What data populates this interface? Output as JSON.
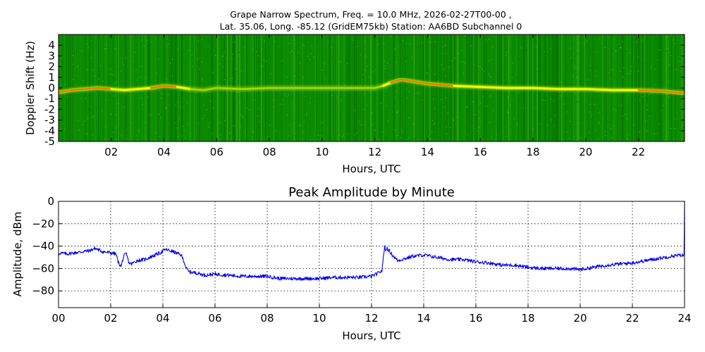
{
  "figure": {
    "title_line1": "Grape Narrow Spectrum, Freq. = 10.0 MHz, 2026-02-27T00-00 ,",
    "title_line2": "Lat.  35.06, Long. -85.12 (GridEM75kb) Station: AA6BD Subchannel 0"
  },
  "colors": {
    "spectrum_background": "#0a8a00",
    "spectrum_dark": "#066e00",
    "spectrum_trace_bright": "#ffff00",
    "spectrum_trace_hot": "#ff2a00",
    "amplitude_line": "#0000ee",
    "grid": "#000000"
  },
  "chart_data": [
    {
      "type": "heatmap",
      "name": "spectrogram",
      "title": "",
      "xlabel": "Hours, UTC",
      "ylabel": "Doppler Shift (Hz)",
      "xlim": [
        0,
        23.75
      ],
      "ylim": [
        -5,
        5
      ],
      "x_ticks": [
        2,
        4,
        6,
        8,
        10,
        12,
        14,
        16,
        18,
        20,
        22
      ],
      "x_tick_labels": [
        "02",
        "04",
        "06",
        "08",
        "10",
        "12",
        "14",
        "16",
        "18",
        "20",
        "22"
      ],
      "y_ticks": [
        -5,
        -4,
        -3,
        -2,
        -1,
        0,
        1,
        2,
        3,
        4
      ],
      "y_tick_labels": [
        "-5",
        "-4",
        "-3",
        "-2",
        "-1",
        "0",
        "1",
        "2",
        "3",
        "4"
      ],
      "colormap": "green-yellow-red",
      "doppler_trace": {
        "x": [
          0,
          0.5,
          1,
          1.5,
          2,
          2.5,
          3,
          3.5,
          4,
          4.5,
          5,
          5.5,
          6,
          7,
          8,
          9,
          10,
          11,
          12,
          12.3,
          12.6,
          13,
          13.5,
          14,
          15,
          16,
          17,
          18,
          19,
          20,
          21,
          22,
          23,
          23.75
        ],
        "y": [
          -0.4,
          -0.2,
          -0.1,
          0.0,
          -0.1,
          -0.2,
          -0.1,
          0.0,
          0.2,
          0.1,
          -0.1,
          -0.2,
          0.0,
          -0.1,
          0.0,
          0.0,
          0.0,
          0.0,
          0.0,
          0.2,
          0.5,
          0.8,
          0.6,
          0.4,
          0.2,
          0.1,
          0.0,
          0.0,
          -0.1,
          -0.1,
          -0.2,
          -0.2,
          -0.3,
          -0.5
        ],
        "strength": [
          0.9,
          1,
          1,
          0.9,
          0.9,
          0.7,
          0.7,
          0.8,
          1,
          0.9,
          0.5,
          0.3,
          0.3,
          0.2,
          0.15,
          0.15,
          0.15,
          0.15,
          0.2,
          0.5,
          0.8,
          0.9,
          0.9,
          0.9,
          0.8,
          0.8,
          0.75,
          0.75,
          0.8,
          0.8,
          0.85,
          0.85,
          0.9,
          1
        ]
      }
    },
    {
      "type": "line",
      "name": "peak-amplitude",
      "title": "Peak Amplitude by Minute",
      "xlabel": "Hours, UTC",
      "ylabel": "Amplitude, dBm",
      "xlim": [
        0,
        24
      ],
      "ylim": [
        -95,
        0
      ],
      "grid": true,
      "x_ticks": [
        0,
        2,
        4,
        6,
        8,
        10,
        12,
        14,
        16,
        18,
        20,
        22,
        24
      ],
      "x_tick_labels": [
        "00",
        "02",
        "04",
        "06",
        "08",
        "10",
        "12",
        "14",
        "16",
        "18",
        "20",
        "22",
        "24"
      ],
      "y_ticks": [
        -80,
        -60,
        -40,
        -20,
        0
      ],
      "y_tick_labels": [
        "−80",
        "−60",
        "−40",
        "−20",
        "0"
      ],
      "series": [
        {
          "x": [
            0,
            0.02,
            0.05,
            0.3,
            0.6,
            0.9,
            1.2,
            1.4,
            1.7,
            2.0,
            2.2,
            2.3,
            2.4,
            2.5,
            2.6,
            2.7,
            2.8,
            3.0,
            3.3,
            3.6,
            3.9,
            4.1,
            4.4,
            4.7,
            4.8,
            4.9,
            5.0,
            5.3,
            5.6,
            6.0,
            6.5,
            7.0,
            7.5,
            8.0,
            8.5,
            9.0,
            9.5,
            10.0,
            10.5,
            11.0,
            11.5,
            12.0,
            12.2,
            12.4,
            12.5,
            12.55,
            12.6,
            12.8,
            13.0,
            13.3,
            13.6,
            14.0,
            14.5,
            15.0,
            15.5,
            16.0,
            16.5,
            17.0,
            17.5,
            18.0,
            18.5,
            19.0,
            19.5,
            20.0,
            20.5,
            21.0,
            21.5,
            22.0,
            22.5,
            23.0,
            23.5,
            23.9,
            23.95,
            23.98,
            24
          ],
          "y": [
            -48,
            -48,
            -46,
            -47,
            -46,
            -45,
            -44,
            -42,
            -45,
            -46,
            -47,
            -55,
            -58,
            -49,
            -47,
            -55,
            -56,
            -53,
            -52,
            -49,
            -46,
            -43,
            -45,
            -48,
            -53,
            -60,
            -63,
            -64,
            -66,
            -65,
            -66,
            -67,
            -67,
            -67,
            -69,
            -69,
            -69,
            -69,
            -68,
            -68,
            -68,
            -67,
            -65,
            -62,
            -40,
            -44,
            -42,
            -48,
            -53,
            -51,
            -49,
            -48,
            -50,
            -52,
            -52,
            -54,
            -55,
            -57,
            -57,
            -59,
            -60,
            -60,
            -60,
            -61,
            -59,
            -57,
            -56,
            -55,
            -53,
            -51,
            -49,
            -48,
            -49,
            -47,
            0
          ]
        }
      ]
    }
  ]
}
